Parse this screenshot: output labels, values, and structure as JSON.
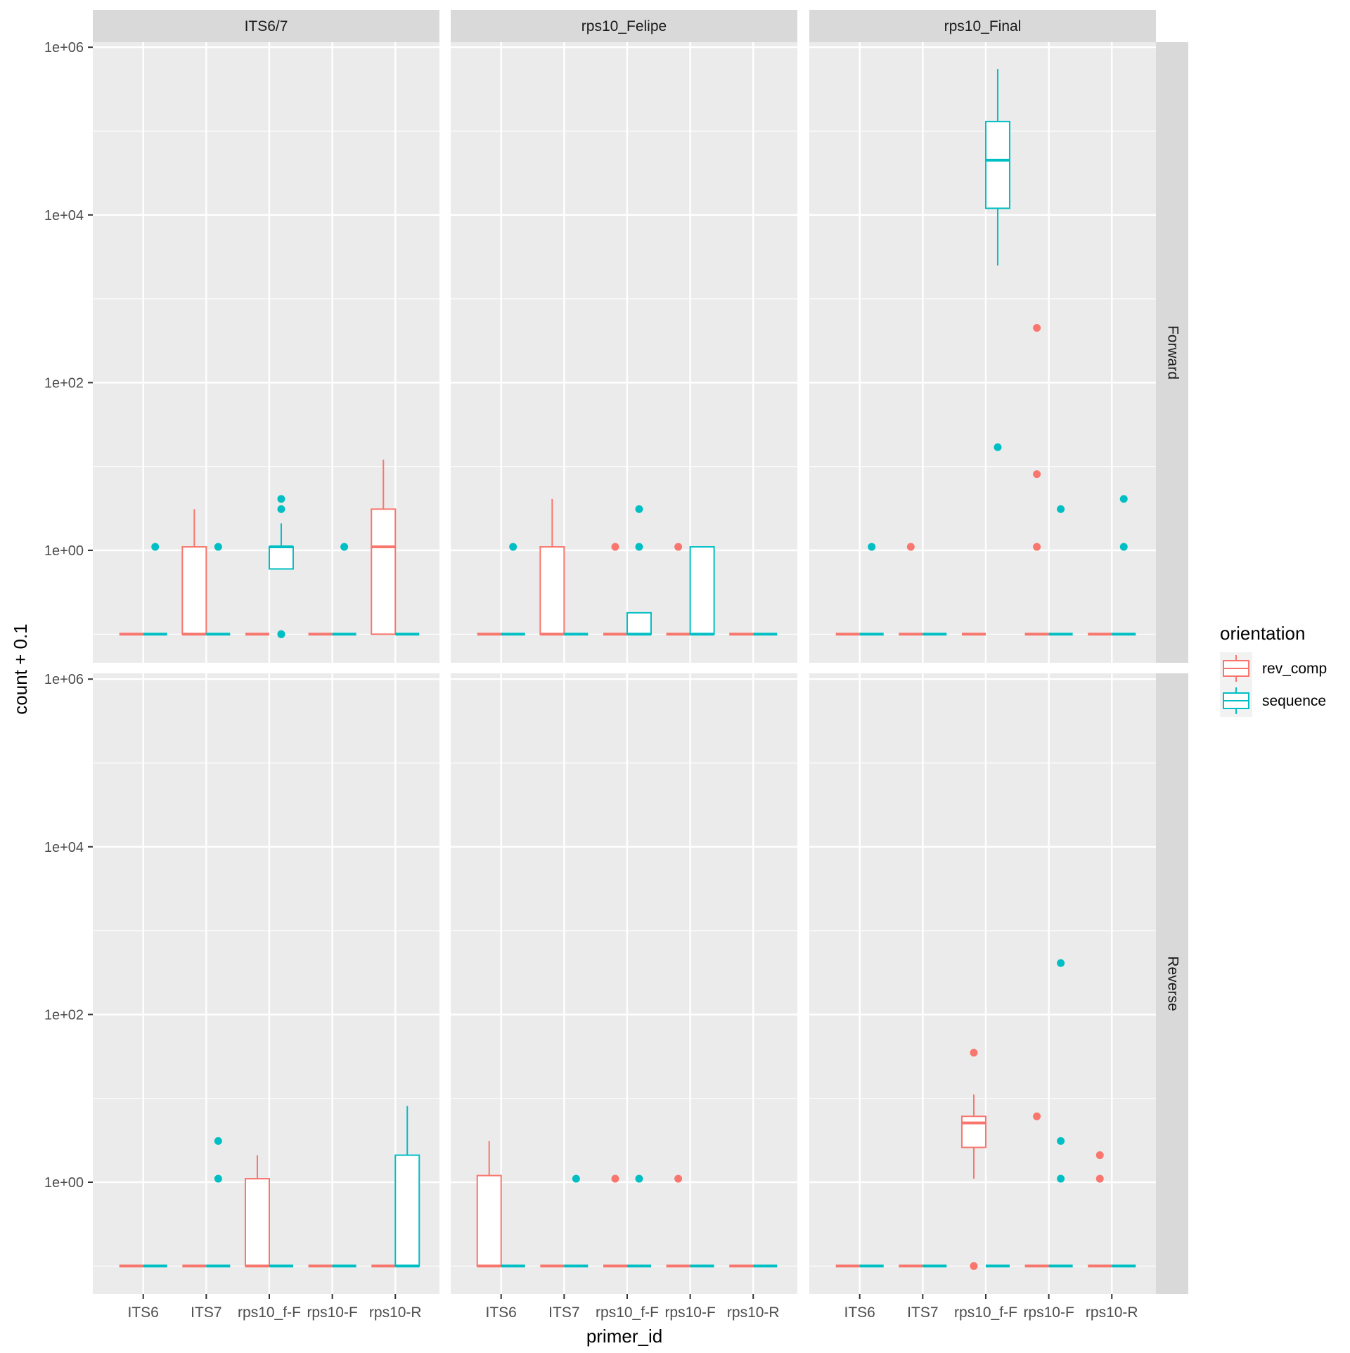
{
  "chart_data": {
    "type": "boxplot",
    "facet_cols": [
      "ITS6/7",
      "rps10_Felipe",
      "rps10_Final"
    ],
    "facet_rows": [
      "Forward",
      "Reverse"
    ],
    "categories": [
      "ITS6",
      "ITS7",
      "rps10_f-F",
      "rps10-F",
      "rps10-R"
    ],
    "xlabel": "primer_id",
    "ylabel": "count + 0.1",
    "yscale": "log10",
    "ylim": [
      0.03,
      1500000
    ],
    "yticks": [
      {
        "value": 1,
        "label": "1e+00"
      },
      {
        "value": 100,
        "label": "1e+02"
      },
      {
        "value": 10000,
        "label": "1e+04"
      },
      {
        "value": 1000000,
        "label": "1e+06"
      }
    ],
    "legend": {
      "title": "orientation",
      "position": "right",
      "entries": [
        {
          "key": "rev_comp",
          "label": "rev_comp",
          "color": "#F8766D"
        },
        {
          "key": "sequence",
          "label": "sequence",
          "color": "#00BFC4"
        }
      ]
    },
    "panels": [
      {
        "facet_col": "ITS6/7",
        "facet_row": "Forward",
        "boxes": [
          {
            "category": "ITS6",
            "series": "rev_comp",
            "min": 0.1,
            "q1": 0.1,
            "median": 0.1,
            "q3": 0.1,
            "max": 0.1,
            "outliers": []
          },
          {
            "category": "ITS6",
            "series": "sequence",
            "min": 0.1,
            "q1": 0.1,
            "median": 0.1,
            "q3": 0.1,
            "max": 0.1,
            "outliers": [
              1.1
            ]
          },
          {
            "category": "ITS7",
            "series": "rev_comp",
            "min": 0.1,
            "q1": 0.1,
            "median": 0.1,
            "q3": 1.1,
            "max": 3.1,
            "outliers": []
          },
          {
            "category": "ITS7",
            "series": "sequence",
            "min": 0.1,
            "q1": 0.1,
            "median": 0.1,
            "q3": 0.1,
            "max": 0.1,
            "outliers": [
              1.1
            ]
          },
          {
            "category": "rps10_f-F",
            "series": "rev_comp",
            "min": 0.1,
            "q1": 0.1,
            "median": 0.1,
            "q3": 0.1,
            "max": 0.1,
            "outliers": []
          },
          {
            "category": "rps10_f-F",
            "series": "sequence",
            "min": 0.6,
            "q1": 0.6,
            "median": 1.1,
            "q3": 1.1,
            "max": 2.1,
            "outliers": [
              0.1,
              0.1,
              3.1,
              4.1
            ]
          },
          {
            "category": "rps10-F",
            "series": "rev_comp",
            "min": 0.1,
            "q1": 0.1,
            "median": 0.1,
            "q3": 0.1,
            "max": 0.1,
            "outliers": []
          },
          {
            "category": "rps10-F",
            "series": "sequence",
            "min": 0.1,
            "q1": 0.1,
            "median": 0.1,
            "q3": 0.1,
            "max": 0.1,
            "outliers": [
              1.1
            ]
          },
          {
            "category": "rps10-R",
            "series": "rev_comp",
            "min": 0.1,
            "q1": 0.1,
            "median": 1.1,
            "q3": 3.1,
            "max": 12.1,
            "outliers": []
          },
          {
            "category": "rps10-R",
            "series": "sequence",
            "min": 0.1,
            "q1": 0.1,
            "median": 0.1,
            "q3": 0.1,
            "max": 0.1,
            "outliers": []
          }
        ]
      },
      {
        "facet_col": "rps10_Felipe",
        "facet_row": "Forward",
        "boxes": [
          {
            "category": "ITS6",
            "series": "rev_comp",
            "min": 0.1,
            "q1": 0.1,
            "median": 0.1,
            "q3": 0.1,
            "max": 0.1,
            "outliers": []
          },
          {
            "category": "ITS6",
            "series": "sequence",
            "min": 0.1,
            "q1": 0.1,
            "median": 0.1,
            "q3": 0.1,
            "max": 0.1,
            "outliers": [
              1.1
            ]
          },
          {
            "category": "ITS7",
            "series": "rev_comp",
            "min": 0.1,
            "q1": 0.1,
            "median": 0.1,
            "q3": 1.1,
            "max": 4.1,
            "outliers": []
          },
          {
            "category": "ITS7",
            "series": "sequence",
            "min": 0.1,
            "q1": 0.1,
            "median": 0.1,
            "q3": 0.1,
            "max": 0.1,
            "outliers": []
          },
          {
            "category": "rps10_f-F",
            "series": "rev_comp",
            "min": 0.1,
            "q1": 0.1,
            "median": 0.1,
            "q3": 0.1,
            "max": 0.1,
            "outliers": [
              1.1
            ]
          },
          {
            "category": "rps10_f-F",
            "series": "sequence",
            "min": 0.1,
            "q1": 0.1,
            "median": 0.1,
            "q3": 0.18,
            "max": 0.18,
            "outliers": [
              1.1,
              3.1
            ]
          },
          {
            "category": "rps10-F",
            "series": "rev_comp",
            "min": 0.1,
            "q1": 0.1,
            "median": 0.1,
            "q3": 0.1,
            "max": 0.1,
            "outliers": [
              1.1
            ]
          },
          {
            "category": "rps10-F",
            "series": "sequence",
            "min": 0.1,
            "q1": 0.1,
            "median": 0.1,
            "q3": 1.1,
            "max": 1.1,
            "outliers": []
          },
          {
            "category": "rps10-R",
            "series": "rev_comp",
            "min": 0.1,
            "q1": 0.1,
            "median": 0.1,
            "q3": 0.1,
            "max": 0.1,
            "outliers": []
          },
          {
            "category": "rps10-R",
            "series": "sequence",
            "min": 0.1,
            "q1": 0.1,
            "median": 0.1,
            "q3": 0.1,
            "max": 0.1,
            "outliers": []
          }
        ]
      },
      {
        "facet_col": "rps10_Final",
        "facet_row": "Forward",
        "boxes": [
          {
            "category": "ITS6",
            "series": "rev_comp",
            "min": 0.1,
            "q1": 0.1,
            "median": 0.1,
            "q3": 0.1,
            "max": 0.1,
            "outliers": []
          },
          {
            "category": "ITS6",
            "series": "sequence",
            "min": 0.1,
            "q1": 0.1,
            "median": 0.1,
            "q3": 0.1,
            "max": 0.1,
            "outliers": [
              1.1
            ]
          },
          {
            "category": "ITS7",
            "series": "rev_comp",
            "min": 0.1,
            "q1": 0.1,
            "median": 0.1,
            "q3": 0.1,
            "max": 0.1,
            "outliers": [
              1.1
            ]
          },
          {
            "category": "ITS7",
            "series": "sequence",
            "min": 0.1,
            "q1": 0.1,
            "median": 0.1,
            "q3": 0.1,
            "max": 0.1,
            "outliers": []
          },
          {
            "category": "rps10_f-F",
            "series": "rev_comp",
            "min": 0.1,
            "q1": 0.1,
            "median": 0.1,
            "q3": 0.1,
            "max": 0.1,
            "outliers": []
          },
          {
            "category": "rps10_f-F",
            "series": "sequence",
            "min": 2500,
            "q1": 12000,
            "median": 45000,
            "q3": 130000,
            "max": 550000,
            "outliers": [
              17
            ]
          },
          {
            "category": "rps10-F",
            "series": "rev_comp",
            "min": 0.1,
            "q1": 0.1,
            "median": 0.1,
            "q3": 0.1,
            "max": 0.1,
            "outliers": [
              1.1,
              8.1,
              450
            ]
          },
          {
            "category": "rps10-F",
            "series": "sequence",
            "min": 0.1,
            "q1": 0.1,
            "median": 0.1,
            "q3": 0.1,
            "max": 0.1,
            "outliers": [
              3.1
            ]
          },
          {
            "category": "rps10-R",
            "series": "rev_comp",
            "min": 0.1,
            "q1": 0.1,
            "median": 0.1,
            "q3": 0.1,
            "max": 0.1,
            "outliers": []
          },
          {
            "category": "rps10-R",
            "series": "sequence",
            "min": 0.1,
            "q1": 0.1,
            "median": 0.1,
            "q3": 0.1,
            "max": 0.1,
            "outliers": [
              1.1,
              4.1
            ]
          }
        ]
      },
      {
        "facet_col": "ITS6/7",
        "facet_row": "Reverse",
        "boxes": [
          {
            "category": "ITS6",
            "series": "rev_comp",
            "min": 0.1,
            "q1": 0.1,
            "median": 0.1,
            "q3": 0.1,
            "max": 0.1,
            "outliers": []
          },
          {
            "category": "ITS6",
            "series": "sequence",
            "min": 0.1,
            "q1": 0.1,
            "median": 0.1,
            "q3": 0.1,
            "max": 0.1,
            "outliers": []
          },
          {
            "category": "ITS7",
            "series": "rev_comp",
            "min": 0.1,
            "q1": 0.1,
            "median": 0.1,
            "q3": 0.1,
            "max": 0.1,
            "outliers": []
          },
          {
            "category": "ITS7",
            "series": "sequence",
            "min": 0.1,
            "q1": 0.1,
            "median": 0.1,
            "q3": 0.1,
            "max": 0.1,
            "outliers": [
              1.1,
              3.1
            ]
          },
          {
            "category": "rps10_f-F",
            "series": "rev_comp",
            "min": 0.1,
            "q1": 0.1,
            "median": 0.1,
            "q3": 1.1,
            "max": 2.1,
            "outliers": []
          },
          {
            "category": "rps10_f-F",
            "series": "sequence",
            "min": 0.1,
            "q1": 0.1,
            "median": 0.1,
            "q3": 0.1,
            "max": 0.1,
            "outliers": []
          },
          {
            "category": "rps10-F",
            "series": "rev_comp",
            "min": 0.1,
            "q1": 0.1,
            "median": 0.1,
            "q3": 0.1,
            "max": 0.1,
            "outliers": []
          },
          {
            "category": "rps10-F",
            "series": "sequence",
            "min": 0.1,
            "q1": 0.1,
            "median": 0.1,
            "q3": 0.1,
            "max": 0.1,
            "outliers": []
          },
          {
            "category": "rps10-R",
            "series": "rev_comp",
            "min": 0.1,
            "q1": 0.1,
            "median": 0.1,
            "q3": 0.1,
            "max": 0.1,
            "outliers": []
          },
          {
            "category": "rps10-R",
            "series": "sequence",
            "min": 0.1,
            "q1": 0.1,
            "median": 0.1,
            "q3": 2.1,
            "max": 8.1,
            "outliers": []
          }
        ]
      },
      {
        "facet_col": "rps10_Felipe",
        "facet_row": "Reverse",
        "boxes": [
          {
            "category": "ITS6",
            "series": "rev_comp",
            "min": 0.1,
            "q1": 0.1,
            "median": 0.1,
            "q3": 1.2,
            "max": 3.1,
            "outliers": []
          },
          {
            "category": "ITS6",
            "series": "sequence",
            "min": 0.1,
            "q1": 0.1,
            "median": 0.1,
            "q3": 0.1,
            "max": 0.1,
            "outliers": []
          },
          {
            "category": "ITS7",
            "series": "rev_comp",
            "min": 0.1,
            "q1": 0.1,
            "median": 0.1,
            "q3": 0.1,
            "max": 0.1,
            "outliers": []
          },
          {
            "category": "ITS7",
            "series": "sequence",
            "min": 0.1,
            "q1": 0.1,
            "median": 0.1,
            "q3": 0.1,
            "max": 0.1,
            "outliers": [
              1.1
            ]
          },
          {
            "category": "rps10_f-F",
            "series": "rev_comp",
            "min": 0.1,
            "q1": 0.1,
            "median": 0.1,
            "q3": 0.1,
            "max": 0.1,
            "outliers": [
              1.1
            ]
          },
          {
            "category": "rps10_f-F",
            "series": "sequence",
            "min": 0.1,
            "q1": 0.1,
            "median": 0.1,
            "q3": 0.1,
            "max": 0.1,
            "outliers": [
              1.1
            ]
          },
          {
            "category": "rps10-F",
            "series": "rev_comp",
            "min": 0.1,
            "q1": 0.1,
            "median": 0.1,
            "q3": 0.1,
            "max": 0.1,
            "outliers": [
              1.1
            ]
          },
          {
            "category": "rps10-F",
            "series": "sequence",
            "min": 0.1,
            "q1": 0.1,
            "median": 0.1,
            "q3": 0.1,
            "max": 0.1,
            "outliers": []
          },
          {
            "category": "rps10-R",
            "series": "rev_comp",
            "min": 0.1,
            "q1": 0.1,
            "median": 0.1,
            "q3": 0.1,
            "max": 0.1,
            "outliers": []
          },
          {
            "category": "rps10-R",
            "series": "sequence",
            "min": 0.1,
            "q1": 0.1,
            "median": 0.1,
            "q3": 0.1,
            "max": 0.1,
            "outliers": []
          }
        ]
      },
      {
        "facet_col": "rps10_Final",
        "facet_row": "Reverse",
        "boxes": [
          {
            "category": "ITS6",
            "series": "rev_comp",
            "min": 0.1,
            "q1": 0.1,
            "median": 0.1,
            "q3": 0.1,
            "max": 0.1,
            "outliers": []
          },
          {
            "category": "ITS6",
            "series": "sequence",
            "min": 0.1,
            "q1": 0.1,
            "median": 0.1,
            "q3": 0.1,
            "max": 0.1,
            "outliers": []
          },
          {
            "category": "ITS7",
            "series": "rev_comp",
            "min": 0.1,
            "q1": 0.1,
            "median": 0.1,
            "q3": 0.1,
            "max": 0.1,
            "outliers": []
          },
          {
            "category": "ITS7",
            "series": "sequence",
            "min": 0.1,
            "q1": 0.1,
            "median": 0.1,
            "q3": 0.1,
            "max": 0.1,
            "outliers": []
          },
          {
            "category": "rps10_f-F",
            "series": "rev_comp",
            "min": 1.1,
            "q1": 2.6,
            "median": 5.1,
            "q3": 6.1,
            "max": 11.1,
            "outliers": [
              0.1,
              35
            ]
          },
          {
            "category": "rps10_f-F",
            "series": "sequence",
            "min": 0.1,
            "q1": 0.1,
            "median": 0.1,
            "q3": 0.1,
            "max": 0.1,
            "outliers": []
          },
          {
            "category": "rps10-F",
            "series": "rev_comp",
            "min": 0.1,
            "q1": 0.1,
            "median": 0.1,
            "q3": 0.1,
            "max": 0.1,
            "outliers": [
              6.1
            ]
          },
          {
            "category": "rps10-F",
            "series": "sequence",
            "min": 0.1,
            "q1": 0.1,
            "median": 0.1,
            "q3": 0.1,
            "max": 0.1,
            "outliers": [
              1.1,
              3.1,
              410
            ]
          },
          {
            "category": "rps10-R",
            "series": "rev_comp",
            "min": 0.1,
            "q1": 0.1,
            "median": 0.1,
            "q3": 0.1,
            "max": 0.1,
            "outliers": [
              1.1,
              2.1
            ]
          },
          {
            "category": "rps10-R",
            "series": "sequence",
            "min": 0.1,
            "q1": 0.1,
            "median": 0.1,
            "q3": 0.1,
            "max": 0.1,
            "outliers": []
          }
        ]
      }
    ]
  }
}
